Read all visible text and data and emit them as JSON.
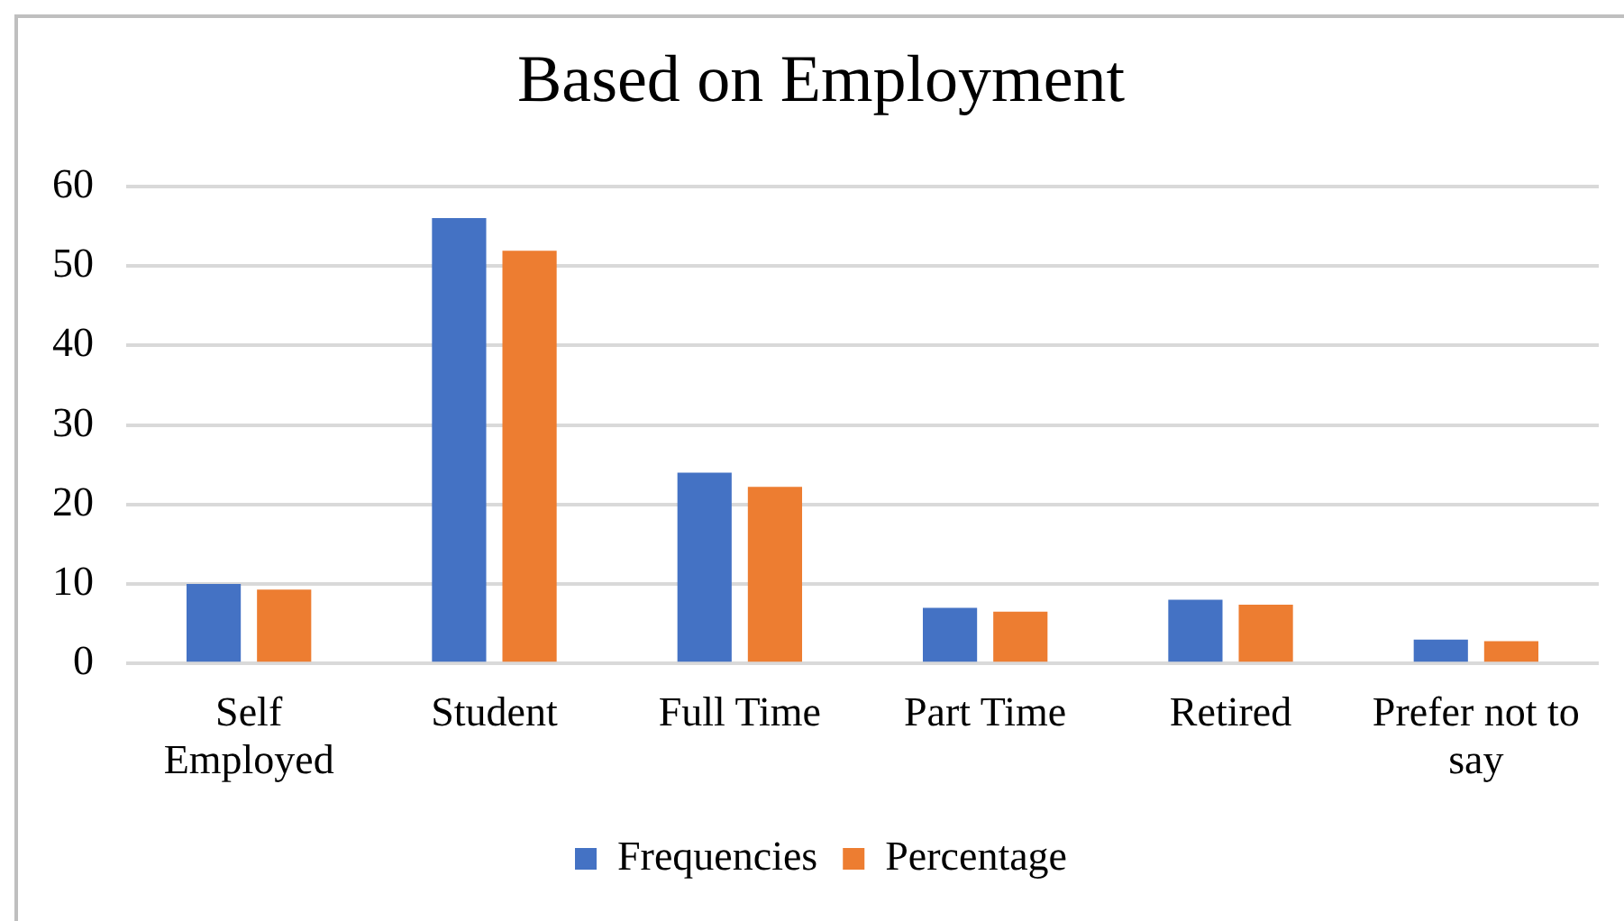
{
  "chart_data": {
    "type": "bar",
    "title": "Based on Employment",
    "categories": [
      "Self Employed",
      "Student",
      "Full Time",
      "Part Time",
      "Retired",
      "Prefer not to say"
    ],
    "series": [
      {
        "name": "Frequencies",
        "color": "#4472c4",
        "values": [
          10,
          56,
          24,
          7,
          8,
          3
        ]
      },
      {
        "name": "Percentage",
        "color": "#ed7d31",
        "values": [
          9.3,
          51.9,
          22.2,
          6.5,
          7.4,
          2.8
        ]
      }
    ],
    "ylim": [
      0,
      60
    ],
    "yticks": [
      0,
      10,
      20,
      30,
      40,
      50,
      60
    ],
    "grid": "y",
    "legend": "bottom"
  }
}
